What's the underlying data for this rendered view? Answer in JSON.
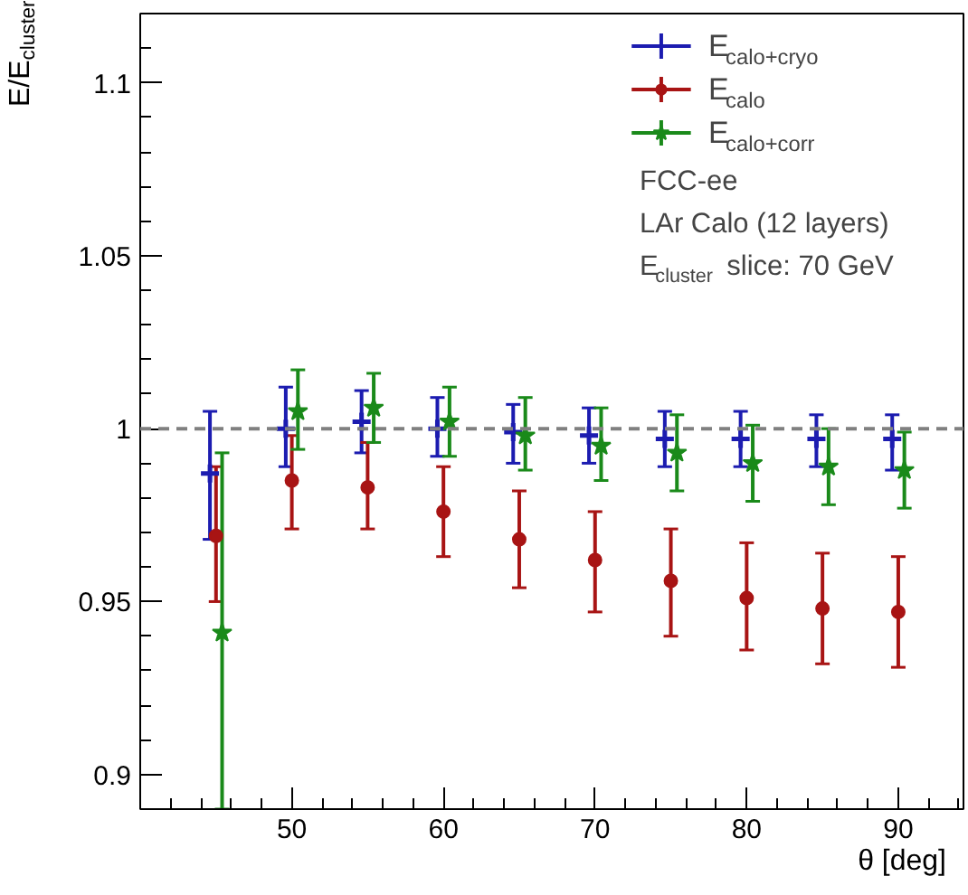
{
  "chart_data": {
    "type": "scatter",
    "xlabel": "θ [deg]",
    "ylabel": "E/E$_{cluster}$",
    "xlim": [
      40,
      94.3
    ],
    "ylim": [
      0.89,
      1.12
    ],
    "xticks": [
      50,
      60,
      70,
      80,
      90
    ],
    "yticks": [
      0.9,
      0.95,
      1,
      1.05,
      1.1
    ],
    "grid": false,
    "legend": "top right",
    "ref_lines": [
      {
        "axis": "y",
        "value": 1,
        "color": "#808080",
        "line_style": "dashed"
      }
    ],
    "annotations": [
      "FCC-ee",
      "LAr Calo (12 layers)",
      "E$_{cluster}$ slice: 70 GeV"
    ],
    "series": [
      {
        "name": "E$_{calo+cryo}$",
        "color": "#1c1cb0",
        "marker": "cross",
        "x": [
          44.6,
          49.6,
          54.6,
          59.6,
          64.6,
          69.6,
          74.6,
          79.6,
          84.6,
          89.6
        ],
        "values": [
          0.987,
          1.0,
          1.002,
          1.0,
          0.999,
          0.998,
          0.997,
          0.997,
          0.997,
          0.997
        ],
        "errors": [
          [
            0.968,
            1.005
          ],
          [
            0.989,
            1.012
          ],
          [
            0.993,
            1.011
          ],
          [
            0.992,
            1.009
          ],
          [
            0.99,
            1.007
          ],
          [
            0.99,
            1.006
          ],
          [
            0.989,
            1.005
          ],
          [
            0.989,
            1.005
          ],
          [
            0.989,
            1.004
          ],
          [
            0.988,
            1.004
          ]
        ]
      },
      {
        "name": "E$_{calo}$",
        "color": "#a81414",
        "marker": "circle",
        "x": [
          45,
          50,
          55,
          60,
          65,
          70,
          75,
          80,
          85,
          90
        ],
        "values": [
          0.969,
          0.985,
          0.983,
          0.976,
          0.968,
          0.962,
          0.956,
          0.951,
          0.948,
          0.947
        ],
        "errors": [
          [
            0.95,
            0.989
          ],
          [
            0.971,
            0.998
          ],
          [
            0.971,
            0.996
          ],
          [
            0.963,
            0.989
          ],
          [
            0.954,
            0.982
          ],
          [
            0.947,
            0.976
          ],
          [
            0.94,
            0.971
          ],
          [
            0.936,
            0.967
          ],
          [
            0.932,
            0.964
          ],
          [
            0.931,
            0.963
          ]
        ]
      },
      {
        "name": "E$_{calo+corr}$",
        "color": "#1a8a1a",
        "marker": "star",
        "x": [
          45.4,
          50.4,
          55.4,
          60.4,
          65.4,
          70.4,
          75.4,
          80.4,
          85.4,
          90.4
        ],
        "values": [
          0.941,
          1.005,
          1.006,
          1.002,
          0.998,
          0.995,
          0.993,
          0.99,
          0.989,
          0.988
        ],
        "errors": [
          [
            0.89,
            0.993
          ],
          [
            0.994,
            1.017
          ],
          [
            0.996,
            1.016
          ],
          [
            0.992,
            1.012
          ],
          [
            0.988,
            1.009
          ],
          [
            0.985,
            1.006
          ],
          [
            0.982,
            1.004
          ],
          [
            0.979,
            1.001
          ],
          [
            0.978,
            1.0
          ],
          [
            0.977,
            0.999
          ]
        ]
      }
    ]
  }
}
